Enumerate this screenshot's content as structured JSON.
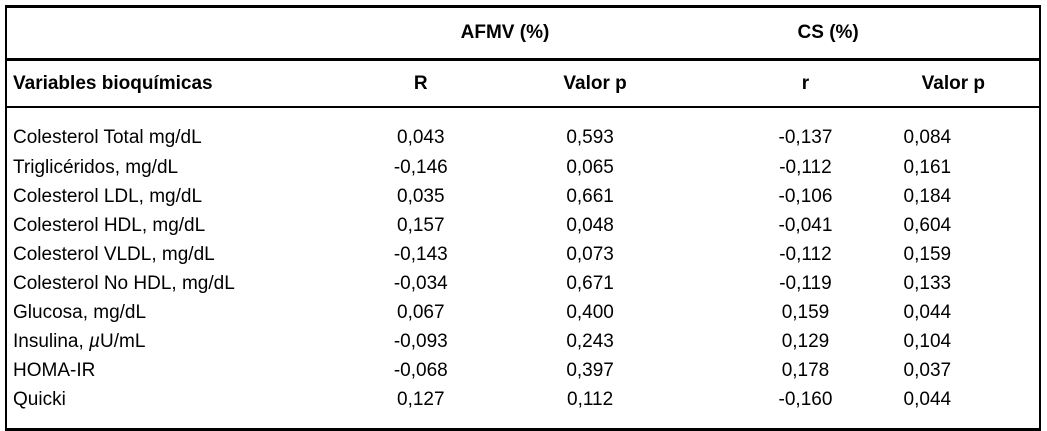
{
  "page": {
    "background": "#ffffff",
    "border_color": "#000000",
    "text_color": "#000000"
  },
  "table": {
    "group_headers": {
      "afmv": "AFMV (%)",
      "cs": "CS (%)"
    },
    "columns": [
      "Variables bioquímicas",
      "R",
      "Valor p",
      "r",
      "Valor p"
    ],
    "rows": [
      {
        "variable": "Colesterol Total mg/dL",
        "afmv_R": "0,043",
        "afmv_p": "0,593",
        "cs_r": "-0,137",
        "cs_p": "0,084"
      },
      {
        "variable": "Triglicéridos, mg/dL",
        "afmv_R": "-0,146",
        "afmv_p": "0,065",
        "cs_r": "-0,112",
        "cs_p": "0,161"
      },
      {
        "variable": "Colesterol LDL, mg/dL",
        "afmv_R": "0,035",
        "afmv_p": "0,661",
        "cs_r": "-0,106",
        "cs_p": "0,184"
      },
      {
        "variable": "Colesterol HDL, mg/dL",
        "afmv_R": "0,157",
        "afmv_p": "0,048",
        "cs_r": "-0,041",
        "cs_p": "0,604"
      },
      {
        "variable": "Colesterol VLDL, mg/dL",
        "afmv_R": "-0,143",
        "afmv_p": "0,073",
        "cs_r": "-0,112",
        "cs_p": "0,159"
      },
      {
        "variable": "Colesterol No HDL, mg/dL",
        "afmv_R": "-0,034",
        "afmv_p": "0,671",
        "cs_r": "-0,119",
        "cs_p": "0,133"
      },
      {
        "variable": "Glucosa, mg/dL",
        "afmv_R": "0,067",
        "afmv_p": "0,400",
        "cs_r": "0,159",
        "cs_p": "0,044"
      },
      {
        "variable": "Insulina, µU/mL",
        "afmv_R": "-0,093",
        "afmv_p": "0,243",
        "cs_r": "0,129",
        "cs_p": "0,104"
      },
      {
        "variable": "HOMA-IR",
        "afmv_R": "-0,068",
        "afmv_p": "0,397",
        "cs_r": "0,178",
        "cs_p": "0,037"
      },
      {
        "variable": "Quicki",
        "afmv_R": "0,127",
        "afmv_p": "0,112",
        "cs_r": "-0,160",
        "cs_p": "0,044"
      }
    ]
  }
}
